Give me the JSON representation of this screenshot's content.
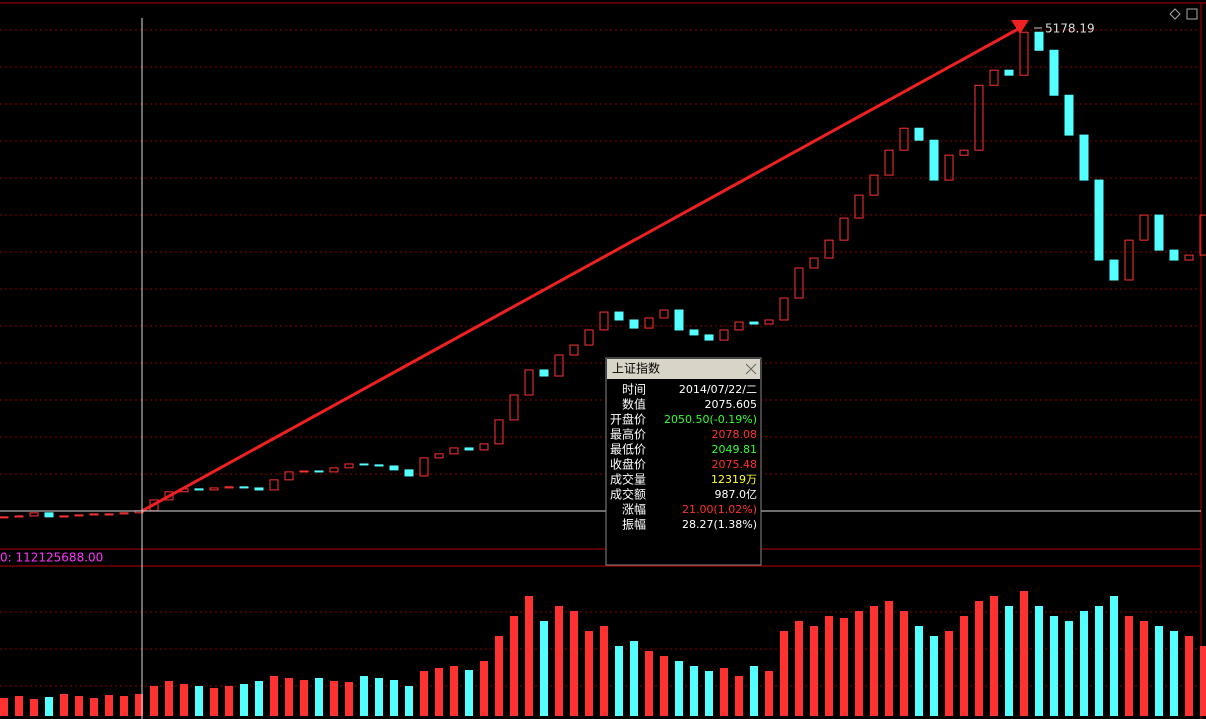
{
  "price_chart": {
    "type": "candlestick",
    "closes": [
      2037,
      2043,
      2063,
      2037,
      2043,
      2050,
      2056,
      2056,
      2063,
      2076,
      2146,
      2198,
      2217,
      2210,
      2223,
      2230,
      2223,
      2210,
      2275,
      2326,
      2332,
      2326,
      2352,
      2377,
      2371,
      2364,
      2339,
      2300,
      2416,
      2442,
      2480,
      2467,
      2506,
      2660,
      2820,
      2981,
      2942,
      3077,
      3141,
      3238,
      3353,
      3302,
      3250,
      3315,
      3366,
      3238,
      3206,
      3173,
      3238,
      3289,
      3276,
      3302,
      3443,
      3636,
      3700,
      3815,
      3957,
      4104,
      4233,
      4393,
      4534,
      4457,
      4201,
      4361,
      4393,
      4810,
      4907,
      4875,
      5151,
      5035,
      4746,
      4490,
      4201,
      3687,
      3559,
      3815,
      3976,
      3751,
      3687,
      3719,
      3976
    ],
    "ylim": [
      1837,
      5358
    ],
    "peak": 5178.19,
    "up_color": "#ff3232",
    "down_color": "#54ffff"
  },
  "volume_chart": {
    "label": "0: 112125688.00",
    "values": [
      18000000,
      20000000,
      17000000,
      19000000,
      22000000,
      20000000,
      18000000,
      21000000,
      20000000,
      22000000,
      30000000,
      35000000,
      32000000,
      30000000,
      28000000,
      30000000,
      32000000,
      35000000,
      40000000,
      38000000,
      36000000,
      38000000,
      35000000,
      34000000,
      40000000,
      38000000,
      36000000,
      30000000,
      45000000,
      48000000,
      50000000,
      46000000,
      55000000,
      80000000,
      100000000,
      120000000,
      95000000,
      110000000,
      105000000,
      85000000,
      90000000,
      70000000,
      75000000,
      65000000,
      60000000,
      55000000,
      50000000,
      45000000,
      48000000,
      40000000,
      50000000,
      45000000,
      85000000,
      95000000,
      90000000,
      100000000,
      98000000,
      105000000,
      110000000,
      115000000,
      105000000,
      90000000,
      80000000,
      85000000,
      100000000,
      115000000,
      120000000,
      110000000,
      125000000,
      110000000,
      100000000,
      95000000,
      105000000,
      110000000,
      120000000,
      100000000,
      95000000,
      90000000,
      85000000,
      80000000,
      70000000
    ],
    "ylim": [
      0,
      150000000
    ]
  },
  "tooltip": {
    "title": "上证指数",
    "rows": [
      {
        "label": "时间",
        "value": "2014/07/22/二",
        "color": "#ffffff"
      },
      {
        "label": "数值",
        "value": "2075.605",
        "color": "#ffffff"
      },
      {
        "label": "开盘价",
        "value": "2050.50(-0.19%)",
        "color": "#33ff33"
      },
      {
        "label": "最高价",
        "value": "2078.08",
        "color": "#ff3232"
      },
      {
        "label": "最低价",
        "value": "2049.81",
        "color": "#33ff33"
      },
      {
        "label": "收盘价",
        "value": "2075.48",
        "color": "#ff3232"
      },
      {
        "label": "成交量",
        "value": "12319万",
        "color": "#ffff33"
      },
      {
        "label": "成交额",
        "value": "987.0亿",
        "color": "#ffffff"
      },
      {
        "label": "涨幅",
        "value": "21.00(1.02%)",
        "color": "#ff3232"
      },
      {
        "label": "振幅",
        "value": "28.27(1.38%)",
        "color": "#ffffff"
      }
    ]
  }
}
